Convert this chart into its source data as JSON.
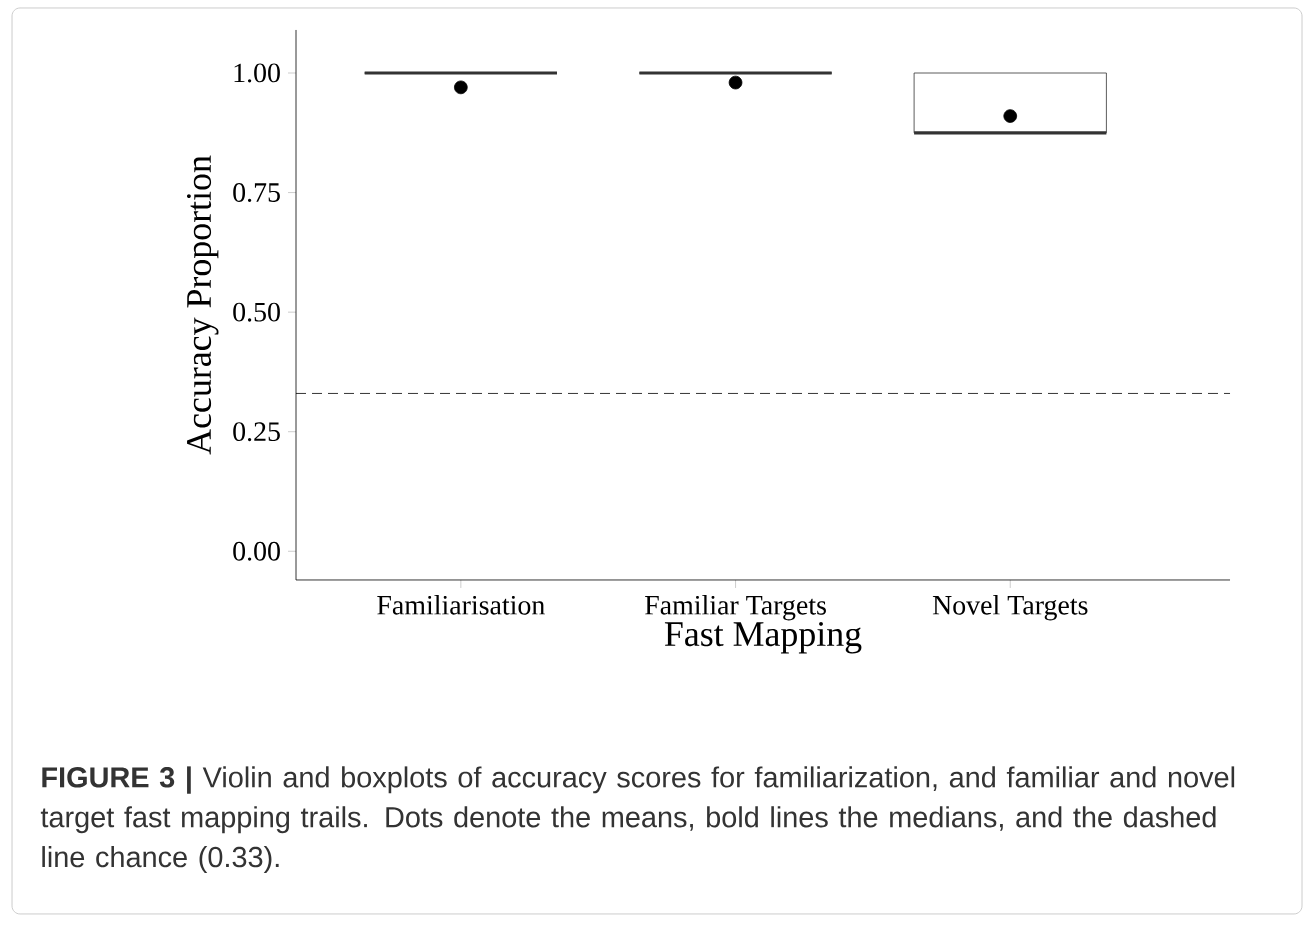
{
  "chart_data": {
    "type": "box",
    "categories": [
      "Familiarisation",
      "Familiar Targets",
      "Novel Targets"
    ],
    "xlabel": "Fast Mapping",
    "ylabel": "Accuracy Proportion",
    "boxes": [
      {
        "low": 1.0,
        "q1": 1.0,
        "median": 1.0,
        "q3": 1.0,
        "high": 1.0,
        "mean": 0.97
      },
      {
        "low": 1.0,
        "q1": 1.0,
        "median": 1.0,
        "q3": 1.0,
        "high": 1.0,
        "mean": 0.98
      },
      {
        "low": 0.875,
        "q1": 0.875,
        "median": 0.875,
        "q3": 1.0,
        "high": 1.0,
        "mean": 0.91
      }
    ],
    "ylim": [
      -0.06,
      1.09
    ],
    "yticks": [
      {
        "value": 0,
        "label": "0.00"
      },
      {
        "value": 0.25,
        "label": "0.25"
      },
      {
        "value": 0.5,
        "label": "0.50"
      },
      {
        "value": 0.75,
        "label": "0.75"
      },
      {
        "value": 1.0,
        "label": "1.00"
      }
    ],
    "ref_lines": [
      {
        "axis": "y",
        "value": 0.33,
        "line_style": "dashed"
      }
    ],
    "marker": "circle",
    "annotations": [
      "**FIGURE 3 |** Violin and boxplots of accuracy scores for familiarization, and familiar and novel target fast mapping trails. Dots denote the means, bold lines the medians, and the dashed line chance (0.33)."
    ]
  }
}
